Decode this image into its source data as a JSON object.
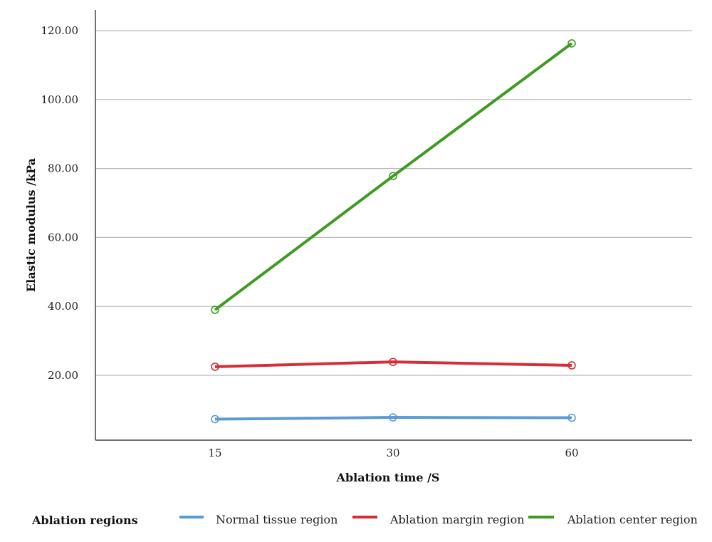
{
  "chart_data": {
    "type": "line",
    "xlabel": "Ablation time /S",
    "ylabel": "Elastic modulus /kPa",
    "categories": [
      "15",
      "30",
      "60"
    ],
    "ylim": [
      0,
      125
    ],
    "yticks": [
      "20.00",
      "40.00",
      "60.00",
      "80.00",
      "100.00",
      "120.00"
    ],
    "grid": true,
    "legend": {
      "title": "Ablation regions",
      "placement": "bottom"
    },
    "series": [
      {
        "name": "Normal tissue region",
        "color": "#5b9bd5",
        "values": [
          7.3,
          7.8,
          7.7
        ]
      },
      {
        "name": "Ablation margin region",
        "color": "#d32f3a",
        "values": [
          22.5,
          23.9,
          22.9
        ]
      },
      {
        "name": "Ablation center region",
        "color": "#3f9a22",
        "values": [
          39.0,
          77.8,
          116.3
        ]
      }
    ]
  }
}
